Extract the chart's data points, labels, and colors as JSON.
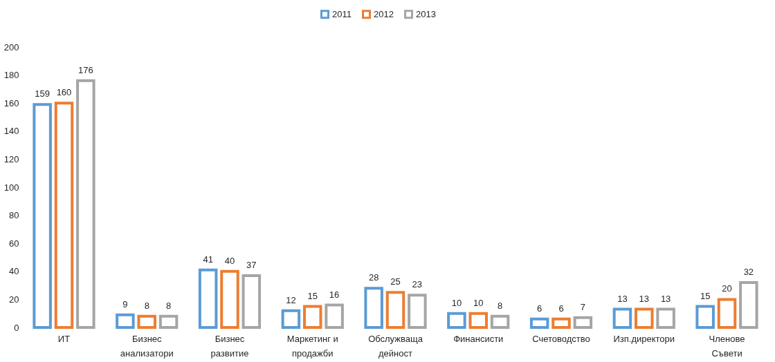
{
  "chart_data": {
    "type": "bar",
    "categories": [
      "ИТ",
      "Бизнес анализатори",
      "Бизнес развитие",
      "Маркетинг и продажби",
      "Обслужваща дейност",
      "Финансисти",
      "Счетоводство",
      "Изп.директори",
      "Членове Съвети"
    ],
    "series": [
      {
        "name": "2011",
        "color": "#5b9bd5",
        "values": [
          159,
          9,
          41,
          12,
          28,
          10,
          6,
          13,
          15
        ]
      },
      {
        "name": "2012",
        "color": "#ed7d31",
        "values": [
          160,
          8,
          40,
          15,
          25,
          10,
          6,
          13,
          20
        ]
      },
      {
        "name": "2013",
        "color": "#a5a5a5",
        "values": [
          176,
          8,
          37,
          16,
          23,
          8,
          7,
          13,
          32
        ]
      }
    ],
    "ylim": [
      0,
      200
    ],
    "yticks": [
      0,
      20,
      40,
      60,
      80,
      100,
      120,
      140,
      160,
      180,
      200
    ],
    "data_labels": true,
    "legend": "top",
    "grid": false
  }
}
